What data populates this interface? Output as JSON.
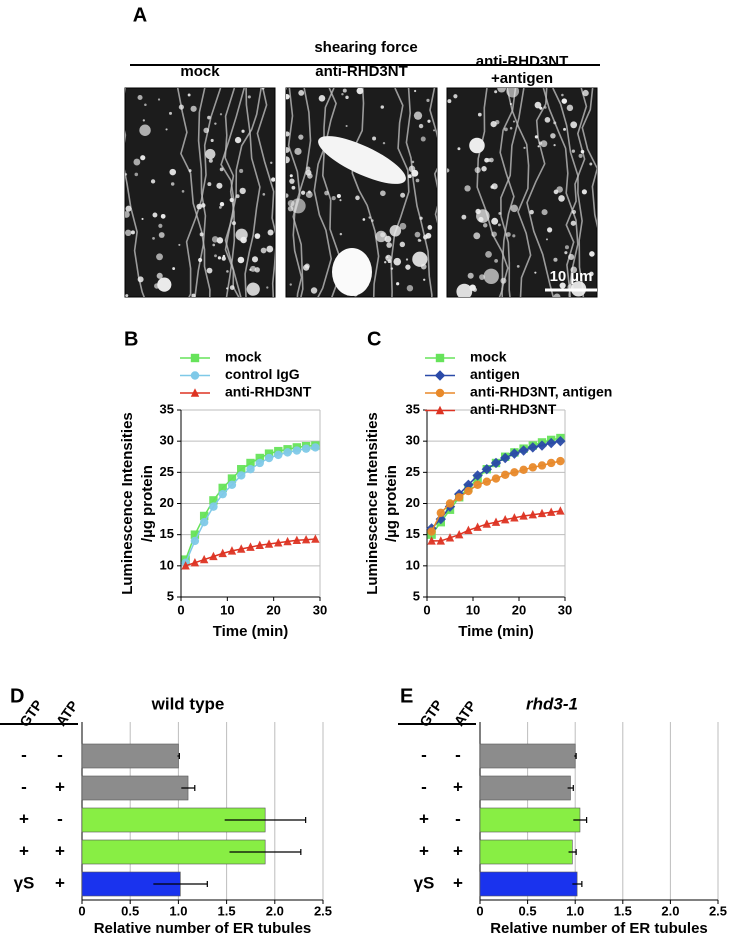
{
  "panel_a": {
    "label": "A",
    "title": "shearing force",
    "images": [
      [
        "mock"
      ],
      [
        "anti-RHD3NT"
      ],
      [
        "anti-RHD3NT",
        "+antigen"
      ]
    ],
    "scale_bar": "10 µm"
  },
  "chart_data": [
    {
      "type": "line",
      "label": "B",
      "y_label": [
        "Luminescence Intensities",
        "/µg protein"
      ],
      "x_label": "Time (min)",
      "x": [
        1,
        3,
        5,
        7,
        9,
        11,
        13,
        15,
        17,
        19,
        21,
        23,
        25,
        27,
        29
      ],
      "series": [
        {
          "name": "mock",
          "color": "#66e35a",
          "marker": "square",
          "values": [
            11,
            15,
            18,
            20.5,
            22.5,
            24,
            25.5,
            26.5,
            27.3,
            28,
            28.4,
            28.7,
            29,
            29.2,
            29.3
          ]
        },
        {
          "name": "control IgG",
          "color": "#7fc9e8",
          "marker": "circle",
          "values": [
            10.5,
            14,
            17,
            19.5,
            21.5,
            23,
            24.5,
            25.5,
            26.5,
            27.3,
            27.8,
            28.2,
            28.5,
            28.8,
            29
          ]
        },
        {
          "name": "anti-RHD3NT",
          "color": "#dd3322",
          "marker": "triangle",
          "values": [
            10,
            10.5,
            11,
            11.5,
            12,
            12.4,
            12.7,
            13,
            13.3,
            13.5,
            13.7,
            13.9,
            14.1,
            14.2,
            14.3
          ]
        }
      ],
      "xlim": [
        0,
        30
      ],
      "xticks": [
        0,
        10,
        20,
        30
      ],
      "ylim": [
        5,
        35
      ],
      "yticks": [
        5,
        10,
        15,
        20,
        25,
        30,
        35
      ],
      "grid": true
    },
    {
      "type": "line",
      "label": "C",
      "y_label": [
        "Luminescence Intensities",
        "/µg protein"
      ],
      "x_label": "Time (min)",
      "x": [
        1,
        3,
        5,
        7,
        9,
        11,
        13,
        15,
        17,
        19,
        21,
        23,
        25,
        27,
        29
      ],
      "series": [
        {
          "name": "mock",
          "color": "#66e35a",
          "marker": "square",
          "values": [
            15,
            17,
            19,
            21,
            22.5,
            24,
            25.5,
            26.5,
            27.5,
            28.2,
            28.8,
            29.3,
            29.8,
            30.2,
            30.5
          ]
        },
        {
          "name": "antigen",
          "color": "#2a4aa8",
          "marker": "diamond",
          "values": [
            16,
            17.5,
            19.5,
            21.5,
            23,
            24.5,
            25.5,
            26.5,
            27.3,
            28,
            28.5,
            29,
            29.3,
            29.7,
            30
          ]
        },
        {
          "name": "anti-RHD3NT, antigen",
          "color": "#e8892a",
          "marker": "circle",
          "values": [
            15.5,
            18.5,
            20,
            21,
            22,
            23,
            23.5,
            24,
            24.6,
            25,
            25.4,
            25.8,
            26.1,
            26.5,
            26.8
          ]
        },
        {
          "name": "anti-RHD3NT",
          "color": "#dd3322",
          "marker": "triangle",
          "values": [
            14,
            14,
            14.5,
            15,
            15.7,
            16.2,
            16.7,
            17,
            17.4,
            17.7,
            18,
            18.2,
            18.4,
            18.6,
            18.8
          ]
        }
      ],
      "xlim": [
        0,
        30
      ],
      "xticks": [
        0,
        10,
        20,
        30
      ],
      "ylim": [
        5,
        35
      ],
      "yticks": [
        5,
        10,
        15,
        20,
        25,
        30,
        35
      ],
      "grid": true
    },
    {
      "type": "hbar",
      "label": "D",
      "title": "wild type",
      "title_italic": false,
      "row_headers": [
        "GTP",
        "ATP"
      ],
      "rows": [
        [
          "-",
          "-"
        ],
        [
          "-",
          "+"
        ],
        [
          "+",
          "-"
        ],
        [
          "+",
          "+"
        ],
        [
          "γS",
          "+"
        ]
      ],
      "values": [
        1.0,
        1.1,
        1.9,
        1.9,
        1.02
      ],
      "errors": [
        0.01,
        0.07,
        0.42,
        0.37,
        0.28
      ],
      "colors": [
        "#8c8c8c",
        "#8c8c8c",
        "#88ee44",
        "#88ee44",
        "#1a33ee"
      ],
      "x_label": "Relative number of ER tubules",
      "xlim": [
        0,
        2.5
      ],
      "xticks": [
        0,
        0.5,
        {
          "value": 1,
          "label": "1.0"
        },
        1.5,
        {
          "value": 2,
          "label": "2.0"
        },
        2.5
      ],
      "grid": true
    },
    {
      "type": "hbar",
      "label": "E",
      "title": "rhd3-1",
      "title_italic": true,
      "row_headers": [
        "GTP",
        "ATP"
      ],
      "rows": [
        [
          "-",
          "-"
        ],
        [
          "-",
          "+"
        ],
        [
          "+",
          "-"
        ],
        [
          "+",
          "+"
        ],
        [
          "γS",
          "+"
        ]
      ],
      "values": [
        1.0,
        0.95,
        1.05,
        0.97,
        1.02
      ],
      "errors": [
        0.01,
        0.03,
        0.07,
        0.04,
        0.05
      ],
      "colors": [
        "#8c8c8c",
        "#8c8c8c",
        "#88ee44",
        "#88ee44",
        "#1a33ee"
      ],
      "x_label": "Relative number of ER tubules",
      "xlim": [
        0,
        2.5
      ],
      "xticks": [
        0,
        0.5,
        {
          "value": 1,
          "label": "1.0"
        },
        1.5,
        {
          "value": 2,
          "label": "2.0"
        },
        2.5
      ],
      "grid": true
    }
  ]
}
